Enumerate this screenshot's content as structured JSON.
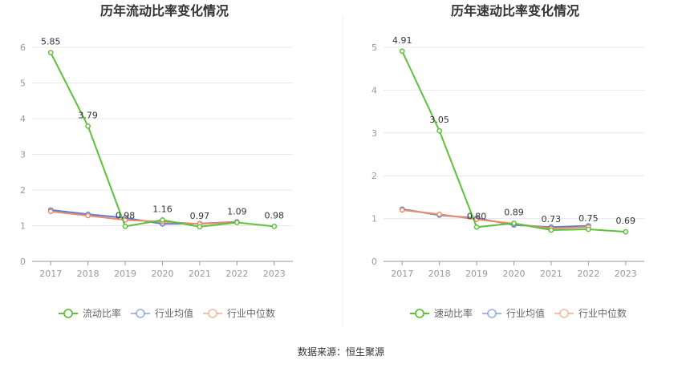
{
  "source_text": "数据来源：恒生聚源",
  "chart_data": [
    {
      "type": "line",
      "title": "历年流动比率变化情况",
      "categories": [
        "2017",
        "2018",
        "2019",
        "2020",
        "2021",
        "2022",
        "2023"
      ],
      "ylim": [
        0,
        6
      ],
      "yticks": [
        0,
        1,
        2,
        3,
        4,
        5,
        6
      ],
      "grid": true,
      "legend_position": "bottom",
      "series": [
        {
          "name": "流动比率",
          "color": "#5cc23a",
          "labels": true,
          "values": [
            5.85,
            3.79,
            0.98,
            1.16,
            0.97,
            1.09,
            0.98
          ]
        },
        {
          "name": "行业均值",
          "color": "#5b7fd6",
          "labels": false,
          "values": [
            1.44,
            1.32,
            1.22,
            1.05,
            1.06,
            1.11,
            null
          ]
        },
        {
          "name": "行业中位数",
          "color": "#f08a6a",
          "labels": false,
          "values": [
            1.4,
            1.28,
            1.16,
            1.11,
            1.05,
            1.1,
            null
          ]
        }
      ]
    },
    {
      "type": "line",
      "title": "历年速动比率变化情况",
      "categories": [
        "2017",
        "2018",
        "2019",
        "2020",
        "2021",
        "2022",
        "2023"
      ],
      "ylim": [
        0,
        5
      ],
      "yticks": [
        0,
        1,
        2,
        3,
        4,
        5
      ],
      "grid": true,
      "legend_position": "bottom",
      "series": [
        {
          "name": "速动比率",
          "color": "#5cc23a",
          "labels": true,
          "values": [
            4.91,
            3.05,
            0.8,
            0.89,
            0.73,
            0.75,
            0.69
          ]
        },
        {
          "name": "行业均值",
          "color": "#5b7fd6",
          "labels": false,
          "values": [
            1.22,
            1.08,
            1.01,
            0.85,
            0.8,
            0.83,
            null
          ]
        },
        {
          "name": "行业中位数",
          "color": "#f08a6a",
          "labels": false,
          "values": [
            1.2,
            1.1,
            0.98,
            0.88,
            0.77,
            0.8,
            null
          ]
        }
      ]
    }
  ]
}
